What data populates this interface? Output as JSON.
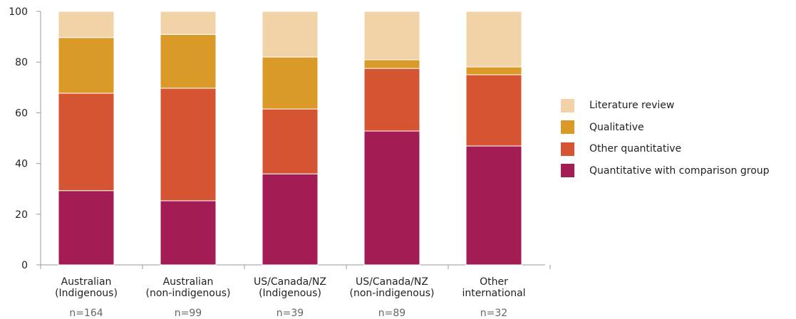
{
  "chart_data": {
    "type": "bar",
    "stacked": true,
    "categories": [
      [
        "Australian",
        "(Indigenous)"
      ],
      [
        "Australian",
        "(non-indigenous)"
      ],
      [
        "US/Canada/NZ",
        "(Indigenous)"
      ],
      [
        "US/Canada/NZ",
        "(non-indigenous)"
      ],
      [
        "Other",
        "international"
      ]
    ],
    "counts": [
      "n=164",
      "n=99",
      "n=39",
      "n=89",
      "n=32"
    ],
    "series": [
      {
        "name": "Quantitative with comparison group",
        "color": "#a31c53",
        "values": [
          29.3,
          25.3,
          35.9,
          52.8,
          46.9
        ]
      },
      {
        "name": "Other quantitative",
        "color": "#d55431",
        "values": [
          38.4,
          44.4,
          25.6,
          24.7,
          28.1
        ]
      },
      {
        "name": "Qualitative",
        "color": "#d99a27",
        "values": [
          22.0,
          21.2,
          20.5,
          3.4,
          3.1
        ]
      },
      {
        "name": "Literature review",
        "color": "#f2d3a8",
        "values": [
          10.3,
          9.1,
          18.0,
          19.1,
          21.9
        ]
      }
    ],
    "ylim": [
      0,
      100
    ],
    "yticks": [
      "0",
      "20",
      "40",
      "60",
      "80",
      "100"
    ],
    "legend_position": "right",
    "grid": false
  }
}
